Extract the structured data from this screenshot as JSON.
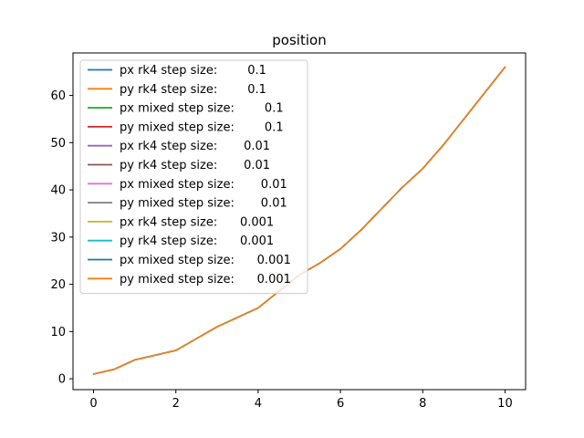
{
  "chart_data": {
    "type": "line",
    "title": "position",
    "xlabel": "",
    "ylabel": "",
    "xlim": [
      -0.5,
      10.5
    ],
    "ylim": [
      -2.3,
      69.0
    ],
    "xticks": [
      0,
      2,
      4,
      6,
      8,
      10
    ],
    "yticks": [
      0,
      10,
      20,
      30,
      40,
      50,
      60
    ],
    "grid": false,
    "legend_position": "top-left",
    "x": [
      0,
      0.5,
      1,
      1.5,
      2,
      2.5,
      3,
      3.5,
      4,
      4.5,
      5,
      5.5,
      6,
      6.5,
      7,
      7.5,
      8,
      8.5,
      9,
      9.5,
      10
    ],
    "series": [
      {
        "name": "px rk4 step size:        0.1",
        "color": "#1f77b4",
        "values": [
          1.0,
          2.0,
          4.0,
          5.0,
          6.0,
          8.5,
          11.0,
          13.0,
          15.0,
          18.5,
          22.0,
          24.5,
          27.5,
          31.5,
          36.0,
          40.5,
          44.5,
          49.5,
          55.0,
          60.5,
          66.0
        ]
      },
      {
        "name": "py rk4 step size:        0.1",
        "color": "#ff7f0e",
        "values": [
          1.0,
          2.0,
          4.0,
          5.0,
          6.0,
          8.5,
          11.0,
          13.0,
          15.0,
          18.5,
          22.0,
          24.5,
          27.5,
          31.5,
          36.0,
          40.5,
          44.5,
          49.5,
          55.0,
          60.5,
          66.0
        ]
      },
      {
        "name": "px mixed step size:        0.1",
        "color": "#2ca02c",
        "values": [
          1.0,
          2.0,
          4.0,
          5.0,
          6.0,
          8.5,
          11.0,
          13.0,
          15.0,
          18.5,
          22.0,
          24.5,
          27.5,
          31.5,
          36.0,
          40.5,
          44.5,
          49.5,
          55.0,
          60.5,
          66.0
        ]
      },
      {
        "name": "py mixed step size:        0.1",
        "color": "#d62728",
        "values": [
          1.0,
          2.0,
          4.0,
          5.0,
          6.0,
          8.5,
          11.0,
          13.0,
          15.0,
          18.5,
          22.0,
          24.5,
          27.5,
          31.5,
          36.0,
          40.5,
          44.5,
          49.5,
          55.0,
          60.5,
          66.0
        ]
      },
      {
        "name": "px rk4 step size:       0.01",
        "color": "#9467bd",
        "values": [
          1.0,
          2.0,
          4.0,
          5.0,
          6.0,
          8.5,
          11.0,
          13.0,
          15.0,
          18.5,
          22.0,
          24.5,
          27.5,
          31.5,
          36.0,
          40.5,
          44.5,
          49.5,
          55.0,
          60.5,
          66.0
        ]
      },
      {
        "name": "py rk4 step size:       0.01",
        "color": "#8c564b",
        "values": [
          1.0,
          2.0,
          4.0,
          5.0,
          6.0,
          8.5,
          11.0,
          13.0,
          15.0,
          18.5,
          22.0,
          24.5,
          27.5,
          31.5,
          36.0,
          40.5,
          44.5,
          49.5,
          55.0,
          60.5,
          66.0
        ]
      },
      {
        "name": "px mixed step size:       0.01",
        "color": "#e377c2",
        "values": [
          1.0,
          2.0,
          4.0,
          5.0,
          6.0,
          8.5,
          11.0,
          13.0,
          15.0,
          18.5,
          22.0,
          24.5,
          27.5,
          31.5,
          36.0,
          40.5,
          44.5,
          49.5,
          55.0,
          60.5,
          66.0
        ]
      },
      {
        "name": "py mixed step size:       0.01",
        "color": "#7f7f7f",
        "values": [
          1.0,
          2.0,
          4.0,
          5.0,
          6.0,
          8.5,
          11.0,
          13.0,
          15.0,
          18.5,
          22.0,
          24.5,
          27.5,
          31.5,
          36.0,
          40.5,
          44.5,
          49.5,
          55.0,
          60.5,
          66.0
        ]
      },
      {
        "name": "px rk4 step size:      0.001",
        "color": "#bcbd22",
        "values": [
          1.0,
          2.0,
          4.0,
          5.0,
          6.0,
          8.5,
          11.0,
          13.0,
          15.0,
          18.5,
          22.0,
          24.5,
          27.5,
          31.5,
          36.0,
          40.5,
          44.5,
          49.5,
          55.0,
          60.5,
          66.0
        ]
      },
      {
        "name": "py rk4 step size:      0.001",
        "color": "#17becf",
        "values": [
          1.0,
          2.0,
          4.0,
          5.0,
          6.0,
          8.5,
          11.0,
          13.0,
          15.0,
          18.5,
          22.0,
          24.5,
          27.5,
          31.5,
          36.0,
          40.5,
          44.5,
          49.5,
          55.0,
          60.5,
          66.0
        ]
      },
      {
        "name": "px mixed step size:      0.001",
        "color": "#1f77b4",
        "values": [
          1.0,
          2.0,
          4.0,
          5.0,
          6.0,
          8.5,
          11.0,
          13.0,
          15.0,
          18.5,
          22.0,
          24.5,
          27.5,
          31.5,
          36.0,
          40.5,
          44.5,
          49.5,
          55.0,
          60.5,
          66.0
        ]
      },
      {
        "name": "py mixed step size:      0.001",
        "color": "#ff7f0e",
        "values": [
          1.0,
          2.0,
          4.0,
          5.0,
          6.0,
          8.5,
          11.0,
          13.0,
          15.0,
          18.5,
          22.0,
          24.5,
          27.5,
          31.5,
          36.0,
          40.5,
          44.5,
          49.5,
          55.0,
          60.5,
          66.0
        ]
      }
    ]
  }
}
